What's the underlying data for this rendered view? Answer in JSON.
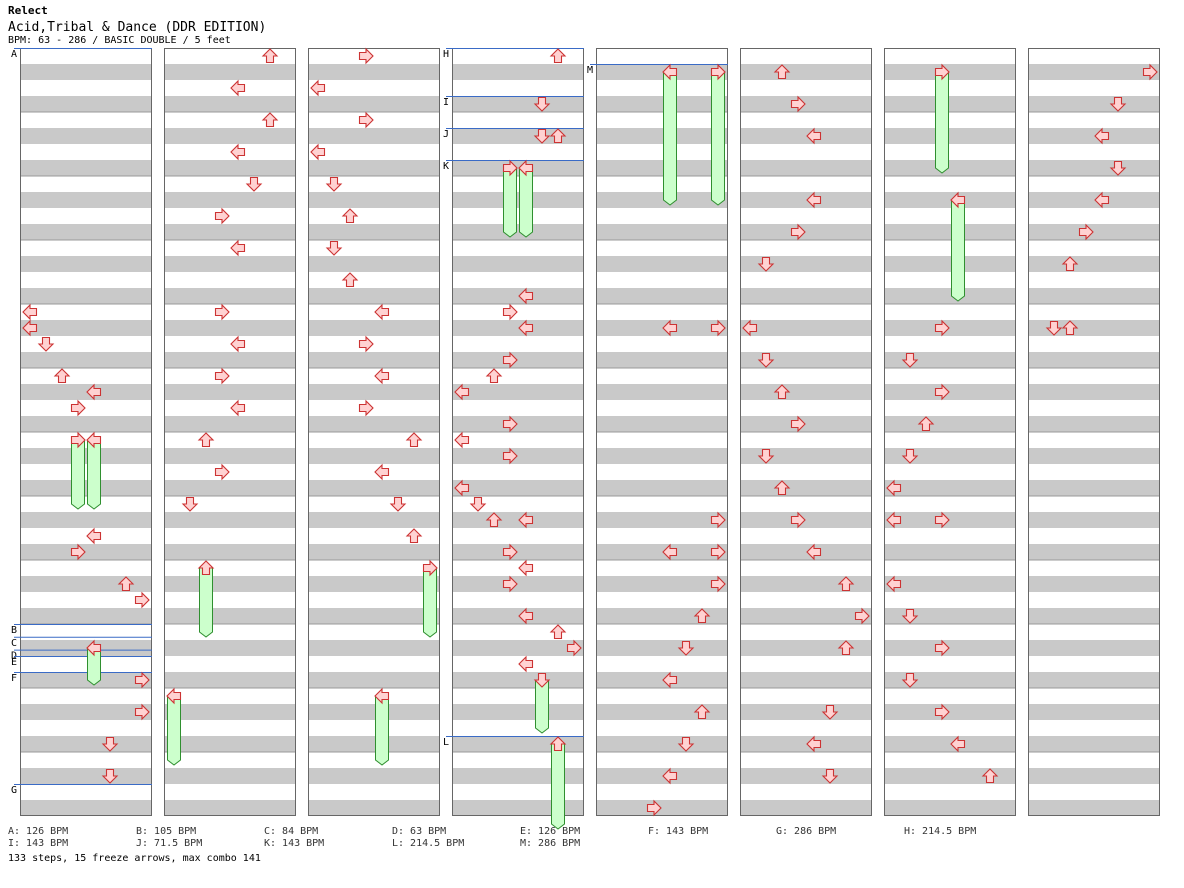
{
  "header": {
    "app_title": "Relect",
    "song_title": "Acid,Tribal & Dance (DDR EDITION)",
    "chart_info": "BPM: 63 - 286 / BASIC DOUBLE / 5 feet"
  },
  "colors": {
    "band": "#c9c9c9",
    "border": "#666666",
    "marker_line": "#3a6bc6",
    "arrow_fill": "#ffd2d2",
    "arrow_stroke": "#cc3333",
    "freeze_fill": "#ccffcc",
    "freeze_stroke": "#2f8f2f"
  },
  "chart_data": {
    "type": "step-chart",
    "columns": 8,
    "measures_per_column": 12,
    "lanes": [
      "L",
      "D",
      "U",
      "R",
      "L",
      "D",
      "U",
      "R"
    ],
    "markers": [
      {
        "label": "A",
        "col": 0,
        "beat": 0
      },
      {
        "label": "B",
        "col": 0,
        "beat": 36
      },
      {
        "label": "C",
        "col": 0,
        "beat": 36.8
      },
      {
        "label": "D",
        "col": 0,
        "beat": 37.6
      },
      {
        "label": "E",
        "col": 0,
        "beat": 38
      },
      {
        "label": "F",
        "col": 0,
        "beat": 39
      },
      {
        "label": "G",
        "col": 0,
        "beat": 46
      },
      {
        "label": "H",
        "col": 3,
        "beat": 0
      },
      {
        "label": "I",
        "col": 3,
        "beat": 3
      },
      {
        "label": "J",
        "col": 3,
        "beat": 5
      },
      {
        "label": "K",
        "col": 3,
        "beat": 7
      },
      {
        "label": "L",
        "col": 3,
        "beat": 43
      },
      {
        "label": "M",
        "col": 4,
        "beat": 1
      }
    ],
    "arrows": [
      {
        "col": 0,
        "lane": 0,
        "beat": 16
      },
      {
        "col": 0,
        "lane": 0,
        "beat": 17
      },
      {
        "col": 0,
        "lane": 1,
        "beat": 18
      },
      {
        "col": 0,
        "lane": 2,
        "beat": 20
      },
      {
        "col": 0,
        "lane": 4,
        "beat": 21
      },
      {
        "col": 0,
        "lane": 3,
        "beat": 22
      },
      {
        "col": 0,
        "lane": 4,
        "beat": 30
      },
      {
        "col": 0,
        "lane": 3,
        "beat": 31
      },
      {
        "col": 0,
        "lane": 6,
        "beat": 33
      },
      {
        "col": 0,
        "lane": 7,
        "beat": 34
      },
      {
        "col": 0,
        "lane": 7,
        "beat": 39
      },
      {
        "col": 0,
        "lane": 7,
        "beat": 41
      },
      {
        "col": 0,
        "lane": 5,
        "beat": 43
      },
      {
        "col": 0,
        "lane": 5,
        "beat": 45
      },
      {
        "col": 1,
        "lane": 6,
        "beat": 0
      },
      {
        "col": 1,
        "lane": 4,
        "beat": 2
      },
      {
        "col": 1,
        "lane": 6,
        "beat": 4
      },
      {
        "col": 1,
        "lane": 4,
        "beat": 6
      },
      {
        "col": 1,
        "lane": 5,
        "beat": 8
      },
      {
        "col": 1,
        "lane": 3,
        "beat": 10
      },
      {
        "col": 1,
        "lane": 4,
        "beat": 12
      },
      {
        "col": 1,
        "lane": 3,
        "beat": 16
      },
      {
        "col": 1,
        "lane": 4,
        "beat": 18
      },
      {
        "col": 1,
        "lane": 3,
        "beat": 20
      },
      {
        "col": 1,
        "lane": 4,
        "beat": 22
      },
      {
        "col": 1,
        "lane": 2,
        "beat": 24
      },
      {
        "col": 1,
        "lane": 3,
        "beat": 26
      },
      {
        "col": 1,
        "lane": 1,
        "beat": 28
      },
      {
        "col": 2,
        "lane": 3,
        "beat": 0
      },
      {
        "col": 2,
        "lane": 0,
        "beat": 2
      },
      {
        "col": 2,
        "lane": 3,
        "beat": 4
      },
      {
        "col": 2,
        "lane": 0,
        "beat": 6
      },
      {
        "col": 2,
        "lane": 1,
        "beat": 8
      },
      {
        "col": 2,
        "lane": 2,
        "beat": 10
      },
      {
        "col": 2,
        "lane": 1,
        "beat": 12
      },
      {
        "col": 2,
        "lane": 2,
        "beat": 14
      },
      {
        "col": 2,
        "lane": 4,
        "beat": 16
      },
      {
        "col": 2,
        "lane": 3,
        "beat": 18
      },
      {
        "col": 2,
        "lane": 4,
        "beat": 20
      },
      {
        "col": 2,
        "lane": 3,
        "beat": 22
      },
      {
        "col": 2,
        "lane": 6,
        "beat": 24
      },
      {
        "col": 2,
        "lane": 4,
        "beat": 26
      },
      {
        "col": 2,
        "lane": 5,
        "beat": 28
      },
      {
        "col": 2,
        "lane": 6,
        "beat": 30
      },
      {
        "col": 3,
        "lane": 6,
        "beat": 0
      },
      {
        "col": 3,
        "lane": 5,
        "beat": 3
      },
      {
        "col": 3,
        "lane": 5,
        "beat": 5
      },
      {
        "col": 3,
        "lane": 6,
        "beat": 5
      },
      {
        "col": 3,
        "lane": 4,
        "beat": 15
      },
      {
        "col": 3,
        "lane": 3,
        "beat": 16
      },
      {
        "col": 3,
        "lane": 4,
        "beat": 17
      },
      {
        "col": 3,
        "lane": 3,
        "beat": 19
      },
      {
        "col": 3,
        "lane": 2,
        "beat": 20
      },
      {
        "col": 3,
        "lane": 0,
        "beat": 21
      },
      {
        "col": 3,
        "lane": 3,
        "beat": 23
      },
      {
        "col": 3,
        "lane": 0,
        "beat": 24
      },
      {
        "col": 3,
        "lane": 3,
        "beat": 25
      },
      {
        "col": 3,
        "lane": 0,
        "beat": 27
      },
      {
        "col": 3,
        "lane": 1,
        "beat": 28
      },
      {
        "col": 3,
        "lane": 2,
        "beat": 29
      },
      {
        "col": 3,
        "lane": 4,
        "beat": 29
      },
      {
        "col": 3,
        "lane": 3,
        "beat": 31
      },
      {
        "col": 3,
        "lane": 4,
        "beat": 32
      },
      {
        "col": 3,
        "lane": 3,
        "beat": 33
      },
      {
        "col": 3,
        "lane": 4,
        "beat": 35
      },
      {
        "col": 3,
        "lane": 6,
        "beat": 36
      },
      {
        "col": 3,
        "lane": 7,
        "beat": 37
      },
      {
        "col": 3,
        "lane": 4,
        "beat": 38
      },
      {
        "col": 4,
        "lane": 4,
        "beat": 17
      },
      {
        "col": 4,
        "lane": 7,
        "beat": 17
      },
      {
        "col": 4,
        "lane": 7,
        "beat": 29
      },
      {
        "col": 4,
        "lane": 4,
        "beat": 31
      },
      {
        "col": 4,
        "lane": 7,
        "beat": 31
      },
      {
        "col": 4,
        "lane": 7,
        "beat": 33
      },
      {
        "col": 4,
        "lane": 6,
        "beat": 35
      },
      {
        "col": 4,
        "lane": 5,
        "beat": 37
      },
      {
        "col": 4,
        "lane": 4,
        "beat": 39
      },
      {
        "col": 4,
        "lane": 6,
        "beat": 41
      },
      {
        "col": 4,
        "lane": 5,
        "beat": 43
      },
      {
        "col": 4,
        "lane": 4,
        "beat": 45
      },
      {
        "col": 4,
        "lane": 3,
        "beat": 47
      },
      {
        "col": 5,
        "lane": 2,
        "beat": 1
      },
      {
        "col": 5,
        "lane": 3,
        "beat": 3
      },
      {
        "col": 5,
        "lane": 4,
        "beat": 5
      },
      {
        "col": 5,
        "lane": 4,
        "beat": 9
      },
      {
        "col": 5,
        "lane": 3,
        "beat": 11
      },
      {
        "col": 5,
        "lane": 1,
        "beat": 13
      },
      {
        "col": 5,
        "lane": 0,
        "beat": 17
      },
      {
        "col": 5,
        "lane": 1,
        "beat": 19
      },
      {
        "col": 5,
        "lane": 2,
        "beat": 21
      },
      {
        "col": 5,
        "lane": 3,
        "beat": 23
      },
      {
        "col": 5,
        "lane": 1,
        "beat": 25
      },
      {
        "col": 5,
        "lane": 2,
        "beat": 27
      },
      {
        "col": 5,
        "lane": 3,
        "beat": 29
      },
      {
        "col": 5,
        "lane": 4,
        "beat": 31
      },
      {
        "col": 5,
        "lane": 6,
        "beat": 33
      },
      {
        "col": 5,
        "lane": 7,
        "beat": 35
      },
      {
        "col": 5,
        "lane": 6,
        "beat": 37
      },
      {
        "col": 5,
        "lane": 5,
        "beat": 41
      },
      {
        "col": 5,
        "lane": 4,
        "beat": 43
      },
      {
        "col": 5,
        "lane": 5,
        "beat": 45
      },
      {
        "col": 6,
        "lane": 3,
        "beat": 17
      },
      {
        "col": 6,
        "lane": 1,
        "beat": 19
      },
      {
        "col": 6,
        "lane": 3,
        "beat": 21
      },
      {
        "col": 6,
        "lane": 2,
        "beat": 23
      },
      {
        "col": 6,
        "lane": 1,
        "beat": 25
      },
      {
        "col": 6,
        "lane": 0,
        "beat": 27
      },
      {
        "col": 6,
        "lane": 0,
        "beat": 29
      },
      {
        "col": 6,
        "lane": 3,
        "beat": 29
      },
      {
        "col": 6,
        "lane": 0,
        "beat": 33
      },
      {
        "col": 6,
        "lane": 1,
        "beat": 35
      },
      {
        "col": 6,
        "lane": 3,
        "beat": 37
      },
      {
        "col": 6,
        "lane": 1,
        "beat": 39
      },
      {
        "col": 6,
        "lane": 3,
        "beat": 41
      },
      {
        "col": 6,
        "lane": 4,
        "beat": 43
      },
      {
        "col": 6,
        "lane": 6,
        "beat": 45
      },
      {
        "col": 7,
        "lane": 7,
        "beat": 1
      },
      {
        "col": 7,
        "lane": 5,
        "beat": 3
      },
      {
        "col": 7,
        "lane": 4,
        "beat": 5
      },
      {
        "col": 7,
        "lane": 5,
        "beat": 7
      },
      {
        "col": 7,
        "lane": 4,
        "beat": 9
      },
      {
        "col": 7,
        "lane": 3,
        "beat": 11
      },
      {
        "col": 7,
        "lane": 2,
        "beat": 13
      },
      {
        "col": 7,
        "lane": 1,
        "beat": 17
      },
      {
        "col": 7,
        "lane": 2,
        "beat": 17
      }
    ],
    "freezes": [
      {
        "col": 0,
        "lane": 3,
        "start": 24,
        "end": 28
      },
      {
        "col": 0,
        "lane": 4,
        "start": 24,
        "end": 28
      },
      {
        "col": 0,
        "lane": 4,
        "start": 37,
        "end": 39
      },
      {
        "col": 1,
        "lane": 2,
        "start": 32,
        "end": 36
      },
      {
        "col": 1,
        "lane": 0,
        "start": 40,
        "end": 44
      },
      {
        "col": 2,
        "lane": 7,
        "start": 32,
        "end": 36
      },
      {
        "col": 2,
        "lane": 4,
        "start": 40,
        "end": 44
      },
      {
        "col": 3,
        "lane": 3,
        "start": 7,
        "end": 11
      },
      {
        "col": 3,
        "lane": 4,
        "start": 7,
        "end": 11
      },
      {
        "col": 3,
        "lane": 5,
        "start": 39,
        "end": 42
      },
      {
        "col": 3,
        "lane": 6,
        "start": 43,
        "end": 48
      },
      {
        "col": 4,
        "lane": 4,
        "start": 1,
        "end": 9
      },
      {
        "col": 4,
        "lane": 7,
        "start": 1,
        "end": 9
      },
      {
        "col": 6,
        "lane": 3,
        "start": 1,
        "end": 7
      },
      {
        "col": 6,
        "lane": 4,
        "start": 9,
        "end": 15
      }
    ]
  },
  "legend": {
    "items": [
      "A: 126 BPM",
      "B: 105 BPM",
      "C: 84 BPM",
      "D: 63 BPM",
      "E: 126 BPM",
      "F: 143 BPM",
      "G: 286 BPM",
      "H: 214.5 BPM",
      "I: 143 BPM",
      "J: 71.5 BPM",
      "K: 143 BPM",
      "L: 214.5 BPM",
      "M: 286 BPM"
    ]
  },
  "footer": {
    "stats": "133 steps, 15 freeze arrows, max combo 141"
  }
}
